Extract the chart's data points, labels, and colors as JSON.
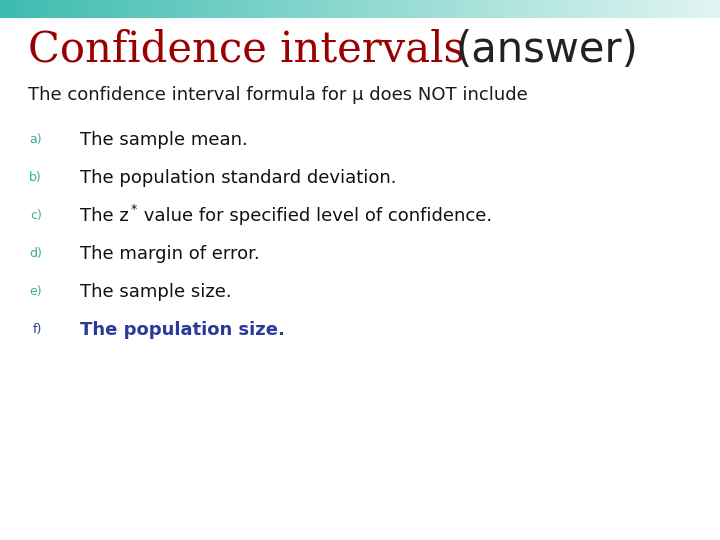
{
  "title_part1": "Confidence intervals ",
  "title_part2": "(answer)",
  "title_color1": "#9B0000",
  "title_color2": "#222222",
  "subtitle": "The confidence interval formula for μ does NOT include",
  "subtitle_color": "#1a1a1a",
  "items": [
    {
      "label": "a)",
      "text": "The sample mean.",
      "label_color": "#3aada0",
      "text_color": "#111111",
      "bold": false
    },
    {
      "label": "b)",
      "text": "The population standard deviation.",
      "label_color": "#3aada0",
      "text_color": "#111111",
      "bold": false
    },
    {
      "label": "c)",
      "text_pre": "The z",
      "text_post": " value for specified level of confidence.",
      "label_color": "#3aada0",
      "text_color": "#111111",
      "bold": false,
      "zsuperscript": true
    },
    {
      "label": "d)",
      "text": "The margin of error.",
      "label_color": "#3aada0",
      "text_color": "#111111",
      "bold": false
    },
    {
      "label": "e)",
      "text": "The sample size.",
      "label_color": "#3aada0",
      "text_color": "#111111",
      "bold": false
    },
    {
      "label": "f)",
      "text": "The population size.",
      "label_color": "#2a3a9a",
      "text_color": "#2a3a9a",
      "bold": true
    }
  ],
  "top_bar_color_left": "#3dbcb0",
  "top_bar_color_right": "#e0f5f2",
  "background_color": "#ffffff",
  "label_fontsize": 9,
  "item_fontsize": 13,
  "subtitle_fontsize": 13,
  "title_fontsize": 30
}
